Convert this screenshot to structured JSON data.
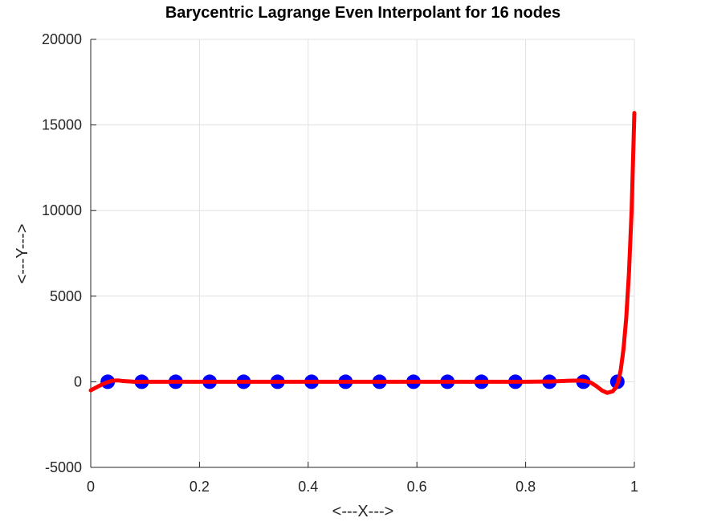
{
  "chart_data": {
    "type": "line",
    "title": "Barycentric Lagrange Even Interpolant for 16 nodes",
    "xlabel": "<---X--->",
    "ylabel": "<---Y--->",
    "xlim": [
      0,
      1
    ],
    "ylim": [
      -5000,
      20000
    ],
    "xticks": [
      0,
      0.2,
      0.4,
      0.6,
      0.8,
      1
    ],
    "xtick_labels": [
      "0",
      "0.2",
      "0.4",
      "0.6",
      "0.8",
      "1"
    ],
    "yticks": [
      -5000,
      0,
      5000,
      10000,
      15000,
      20000
    ],
    "ytick_labels": [
      "-5000",
      "0",
      "5000",
      "10000",
      "15000",
      "20000"
    ],
    "grid": true,
    "series": [
      {
        "kind": "scatter",
        "color": "#0000ff",
        "x": [
          0.03125,
          0.09375,
          0.15625,
          0.21875,
          0.28125,
          0.34375,
          0.40625,
          0.46875,
          0.53125,
          0.59375,
          0.65625,
          0.71875,
          0.78125,
          0.84375,
          0.90625,
          0.96875
        ],
        "y": [
          0,
          0,
          0,
          0,
          0,
          0,
          0,
          0,
          0,
          0,
          0,
          0,
          0,
          0,
          0,
          0
        ]
      },
      {
        "kind": "line",
        "color": "#ff0000",
        "x": [
          0,
          0.01,
          0.02,
          0.03,
          0.04,
          0.05,
          0.06,
          0.08,
          0.1,
          0.2,
          0.3,
          0.4,
          0.5,
          0.6,
          0.7,
          0.8,
          0.85,
          0.88,
          0.9,
          0.91,
          0.92,
          0.93,
          0.94,
          0.95,
          0.96,
          0.965,
          0.97,
          0.975,
          0.98,
          0.985,
          0.99,
          0.995,
          1.0
        ],
        "y": [
          -500,
          -330,
          -170,
          -30,
          60,
          80,
          40,
          0,
          0,
          0,
          0,
          0,
          0,
          0,
          0,
          0,
          20,
          60,
          70,
          40,
          -50,
          -250,
          -500,
          -650,
          -560,
          -380,
          -50,
          700,
          1900,
          3700,
          6300,
          10000,
          15700
        ]
      }
    ]
  }
}
